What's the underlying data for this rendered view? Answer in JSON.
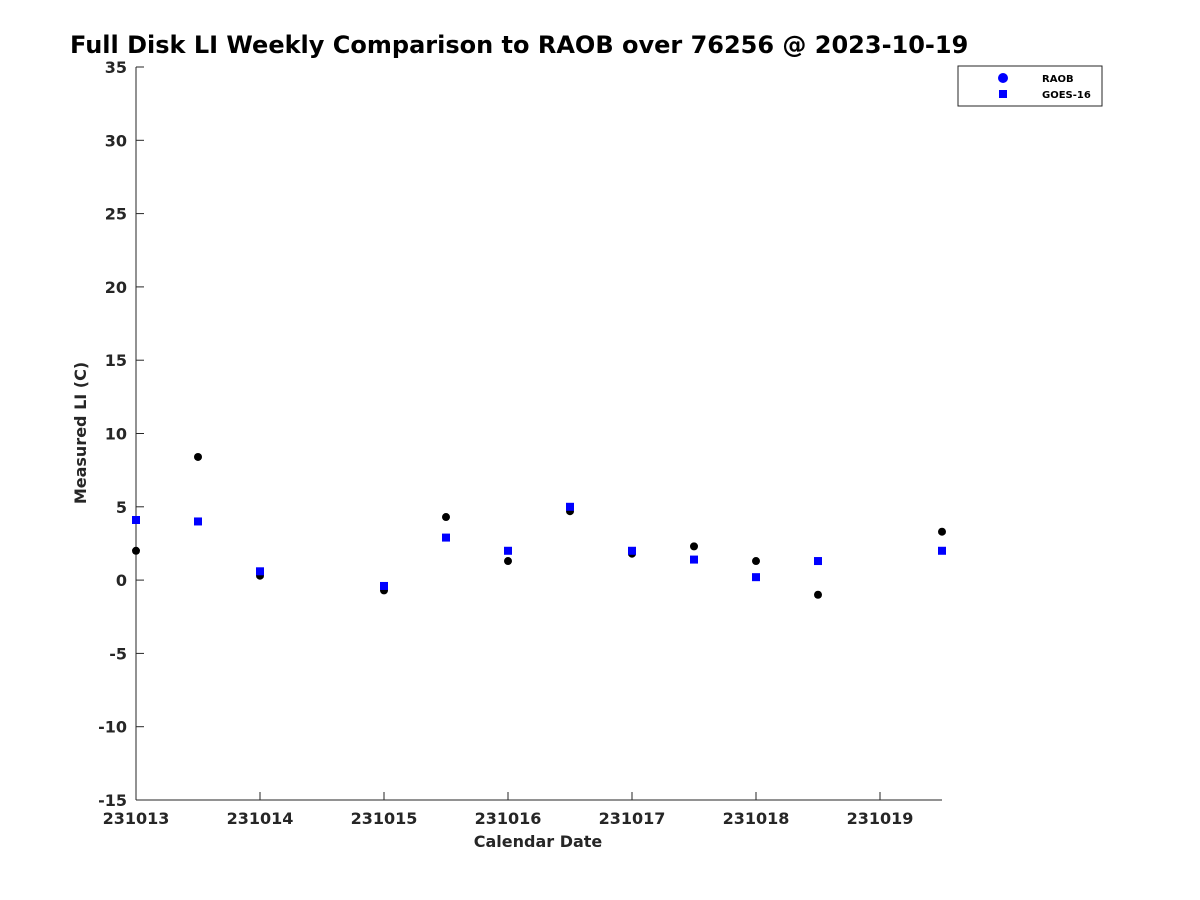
{
  "chart_data": {
    "type": "scatter",
    "title": "Full Disk LI Weekly Comparison to RAOB over 76256 @ 2023-10-19",
    "xlabel": "Calendar Date",
    "ylabel": "Measured LI (C)",
    "xlim": [
      "2023-10-13",
      "2023-10-19T12:00"
    ],
    "ylim": [
      -15,
      35
    ],
    "x_ticks": [
      {
        "value": "2023-10-13",
        "label": "231013"
      },
      {
        "value": "2023-10-14",
        "label": "231014"
      },
      {
        "value": "2023-10-15",
        "label": "231015"
      },
      {
        "value": "2023-10-16",
        "label": "231016"
      },
      {
        "value": "2023-10-17",
        "label": "231017"
      },
      {
        "value": "2023-10-18",
        "label": "231018"
      },
      {
        "value": "2023-10-19",
        "label": "231019"
      }
    ],
    "y_ticks": [
      -15,
      -10,
      -5,
      0,
      5,
      10,
      15,
      20,
      25,
      30,
      35
    ],
    "grid": false,
    "legend_position": "top-right",
    "series": [
      {
        "name": "RAOB",
        "marker": "circle",
        "legend_color": "#0000ff",
        "color": "#000000",
        "points": [
          {
            "x": "2023-10-13T00:00",
            "y": 2.0
          },
          {
            "x": "2023-10-13T12:00",
            "y": 8.4
          },
          {
            "x": "2023-10-14T00:00",
            "y": 0.3
          },
          {
            "x": "2023-10-15T00:00",
            "y": -0.7
          },
          {
            "x": "2023-10-15T12:00",
            "y": 4.3
          },
          {
            "x": "2023-10-16T00:00",
            "y": 1.3
          },
          {
            "x": "2023-10-16T12:00",
            "y": 4.7
          },
          {
            "x": "2023-10-17T00:00",
            "y": 1.8
          },
          {
            "x": "2023-10-17T12:00",
            "y": 2.3
          },
          {
            "x": "2023-10-18T00:00",
            "y": 1.3
          },
          {
            "x": "2023-10-18T12:00",
            "y": -1.0
          },
          {
            "x": "2023-10-19T12:00",
            "y": 3.3
          }
        ]
      },
      {
        "name": "GOES-16",
        "marker": "square",
        "color": "#0000ff",
        "points": [
          {
            "x": "2023-10-13T00:00",
            "y": 4.1
          },
          {
            "x": "2023-10-13T12:00",
            "y": 4.0
          },
          {
            "x": "2023-10-14T00:00",
            "y": 0.6
          },
          {
            "x": "2023-10-15T00:00",
            "y": -0.4
          },
          {
            "x": "2023-10-15T12:00",
            "y": 2.9
          },
          {
            "x": "2023-10-16T00:00",
            "y": 2.0
          },
          {
            "x": "2023-10-16T12:00",
            "y": 5.0
          },
          {
            "x": "2023-10-17T00:00",
            "y": 2.0
          },
          {
            "x": "2023-10-17T12:00",
            "y": 1.4
          },
          {
            "x": "2023-10-18T00:00",
            "y": 0.2
          },
          {
            "x": "2023-10-18T12:00",
            "y": 1.3
          },
          {
            "x": "2023-10-19T12:00",
            "y": 2.0
          }
        ]
      }
    ]
  }
}
